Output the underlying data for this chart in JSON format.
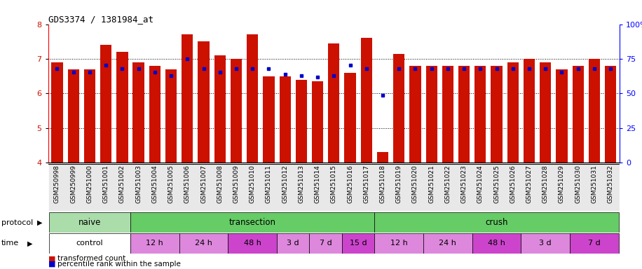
{
  "title": "GDS3374 / 1381984_at",
  "samples": [
    "GSM250998",
    "GSM250999",
    "GSM251000",
    "GSM251001",
    "GSM251002",
    "GSM251003",
    "GSM251004",
    "GSM251005",
    "GSM251006",
    "GSM251007",
    "GSM251008",
    "GSM251009",
    "GSM251010",
    "GSM251011",
    "GSM251012",
    "GSM251013",
    "GSM251014",
    "GSM251015",
    "GSM251016",
    "GSM251017",
    "GSM251018",
    "GSM251019",
    "GSM251020",
    "GSM251021",
    "GSM251022",
    "GSM251023",
    "GSM251024",
    "GSM251025",
    "GSM251026",
    "GSM251027",
    "GSM251028",
    "GSM251029",
    "GSM251030",
    "GSM251031",
    "GSM251032"
  ],
  "red_values": [
    6.9,
    6.7,
    6.7,
    7.4,
    7.2,
    6.9,
    6.8,
    6.7,
    7.7,
    7.5,
    7.1,
    7.0,
    7.7,
    6.5,
    6.5,
    6.4,
    6.35,
    7.45,
    6.6,
    7.6,
    4.3,
    7.15,
    6.8,
    6.8,
    6.8,
    6.8,
    6.8,
    6.8,
    6.9,
    7.0,
    6.9,
    6.7,
    6.8,
    7.0,
    6.8
  ],
  "blue_values": [
    6.72,
    6.62,
    6.62,
    6.82,
    6.72,
    6.72,
    6.62,
    6.52,
    7.0,
    6.72,
    6.62,
    6.72,
    6.72,
    6.72,
    6.55,
    6.52,
    6.48,
    6.52,
    6.82,
    6.72,
    5.95,
    6.72,
    6.72,
    6.72,
    6.72,
    6.72,
    6.72,
    6.72,
    6.72,
    6.72,
    6.72,
    6.62,
    6.72,
    6.72,
    6.72
  ],
  "ylim": [
    4,
    8
  ],
  "yticks": [
    4,
    5,
    6,
    7,
    8
  ],
  "right_ytick_labels": [
    "0",
    "25",
    "50",
    "75",
    "100%"
  ],
  "bar_color": "#cc1100",
  "dot_color": "#0000cc",
  "naive_color": "#aaddaa",
  "transection_color": "#66cc66",
  "crush_color": "#66cc66",
  "control_color": "#ffffff",
  "time_pink_color": "#dd88dd",
  "time_magenta_color": "#cc44cc",
  "proto_groups": [
    {
      "label": "naive",
      "start": 0,
      "end": 4,
      "type": "naive"
    },
    {
      "label": "transection",
      "start": 5,
      "end": 19,
      "type": "transection"
    },
    {
      "label": "crush",
      "start": 20,
      "end": 34,
      "type": "crush"
    }
  ],
  "time_groups": [
    {
      "label": "control",
      "start": 0,
      "end": 4,
      "type": "control"
    },
    {
      "label": "12 h",
      "start": 5,
      "end": 7,
      "type": "pink"
    },
    {
      "label": "24 h",
      "start": 8,
      "end": 10,
      "type": "pink"
    },
    {
      "label": "48 h",
      "start": 11,
      "end": 13,
      "type": "magenta"
    },
    {
      "label": "3 d",
      "start": 14,
      "end": 15,
      "type": "pink"
    },
    {
      "label": "7 d",
      "start": 16,
      "end": 17,
      "type": "pink"
    },
    {
      "label": "15 d",
      "start": 18,
      "end": 19,
      "type": "magenta"
    },
    {
      "label": "12 h",
      "start": 20,
      "end": 22,
      "type": "pink"
    },
    {
      "label": "24 h",
      "start": 23,
      "end": 25,
      "type": "pink"
    },
    {
      "label": "48 h",
      "start": 26,
      "end": 28,
      "type": "magenta"
    },
    {
      "label": "3 d",
      "start": 29,
      "end": 31,
      "type": "pink"
    },
    {
      "label": "7 d",
      "start": 32,
      "end": 34,
      "type": "magenta"
    }
  ]
}
